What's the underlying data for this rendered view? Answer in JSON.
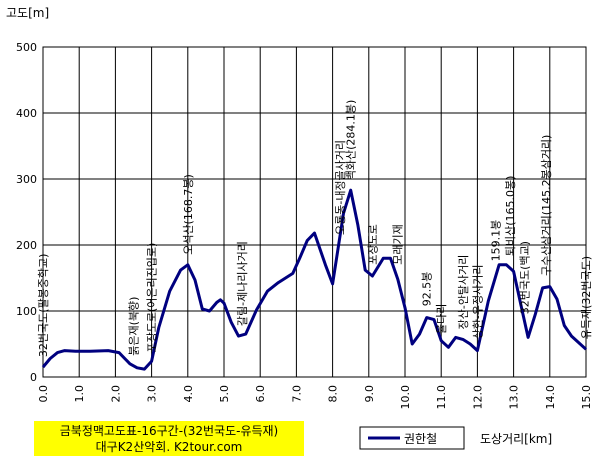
{
  "chart_data": {
    "type": "line",
    "title_lines": [
      "금북정맥고도표-16구간-(32번국도-유득재)",
      "대구K2산악회. K2tour.com"
    ],
    "ylabel": "고도[m]",
    "xlabel": "도상거리[km]",
    "xlim": [
      0,
      15
    ],
    "ylim": [
      0,
      500
    ],
    "x_ticks": [
      "0.0",
      "1.0",
      "2.0",
      "3.0",
      "4.0",
      "5.0",
      "6.0",
      "7.0",
      "8.0",
      "9.0",
      "10.0",
      "11.0",
      "12.0",
      "13.0",
      "14.0",
      "15.0"
    ],
    "y_ticks": [
      "0",
      "100",
      "200",
      "300",
      "400",
      "500"
    ],
    "grid": true,
    "legend_position": "bottom",
    "line_color": "#00007f",
    "series": [
      {
        "name": "권한철",
        "x": [
          0.0,
          0.2,
          0.4,
          0.6,
          0.9,
          1.3,
          1.8,
          2.1,
          2.4,
          2.6,
          2.8,
          3.0,
          3.2,
          3.5,
          3.8,
          4.0,
          4.2,
          4.4,
          4.6,
          4.8,
          4.9,
          5.0,
          5.2,
          5.4,
          5.6,
          5.9,
          6.2,
          6.5,
          6.9,
          7.1,
          7.3,
          7.5,
          7.8,
          8.0,
          8.3,
          8.5,
          8.7,
          8.9,
          9.1,
          9.4,
          9.6,
          9.8,
          10.0,
          10.2,
          10.4,
          10.6,
          10.8,
          11.0,
          11.2,
          11.4,
          11.6,
          11.8,
          12.0,
          12.3,
          12.6,
          12.8,
          13.0,
          13.2,
          13.4,
          13.6,
          13.8,
          14.0,
          14.2,
          14.4,
          14.6,
          14.8,
          15.0
        ],
        "y": [
          15,
          28,
          37,
          40,
          39,
          39,
          40,
          37,
          20,
          14,
          12,
          24,
          75,
          130,
          162,
          170,
          147,
          103,
          100,
          113,
          117,
          112,
          83,
          62,
          65,
          102,
          130,
          143,
          157,
          181,
          207,
          218,
          170,
          141,
          248,
          283,
          230,
          162,
          153,
          180,
          180,
          148,
          105,
          50,
          65,
          90,
          87,
          55,
          45,
          60,
          57,
          50,
          40,
          115,
          170,
          170,
          160,
          110,
          60,
          95,
          135,
          137,
          118,
          78,
          62,
          52,
          42
        ]
      }
    ],
    "annotations": [
      {
        "x": 0.0,
        "y": 15,
        "text": "32번국도(팔봉중학교)"
      },
      {
        "x": 2.5,
        "y": 17,
        "text": "붉은재(북향)"
      },
      {
        "x": 3.0,
        "y": 22,
        "text": "포장도로(어은리진입로)"
      },
      {
        "x": 4.0,
        "y": 170,
        "text": "오석산(168.7봉)"
      },
      {
        "x": 5.5,
        "y": 62,
        "text": "갈림-제나리사거리"
      },
      {
        "x": 8.2,
        "y": 200,
        "text": "오룡동-내정골사거리"
      },
      {
        "x": 8.5,
        "y": 283,
        "text": "백화산(284.1봉)"
      },
      {
        "x": 9.1,
        "y": 155,
        "text": "포장도로"
      },
      {
        "x": 9.8,
        "y": 155,
        "text": "모래기재"
      },
      {
        "x": 10.6,
        "y": 92,
        "text": "92.5봉"
      },
      {
        "x": 11.0,
        "y": 50,
        "text": "율다리"
      },
      {
        "x": 11.6,
        "y": 57,
        "text": "장산-안탈사거리"
      },
      {
        "x": 12.0,
        "y": 42,
        "text": "상한-우정사거리"
      },
      {
        "x": 12.5,
        "y": 160,
        "text": "159.1봉"
      },
      {
        "x": 12.9,
        "y": 168,
        "text": "퇴비산(165.0봉)"
      },
      {
        "x": 13.3,
        "y": 80,
        "text": "32번국도(백교)"
      },
      {
        "x": 13.9,
        "y": 138,
        "text": "구수산삼거리(145.2봉삼거리)"
      },
      {
        "x": 15.0,
        "y": 42,
        "text": "유득재(32번국도)"
      }
    ]
  }
}
